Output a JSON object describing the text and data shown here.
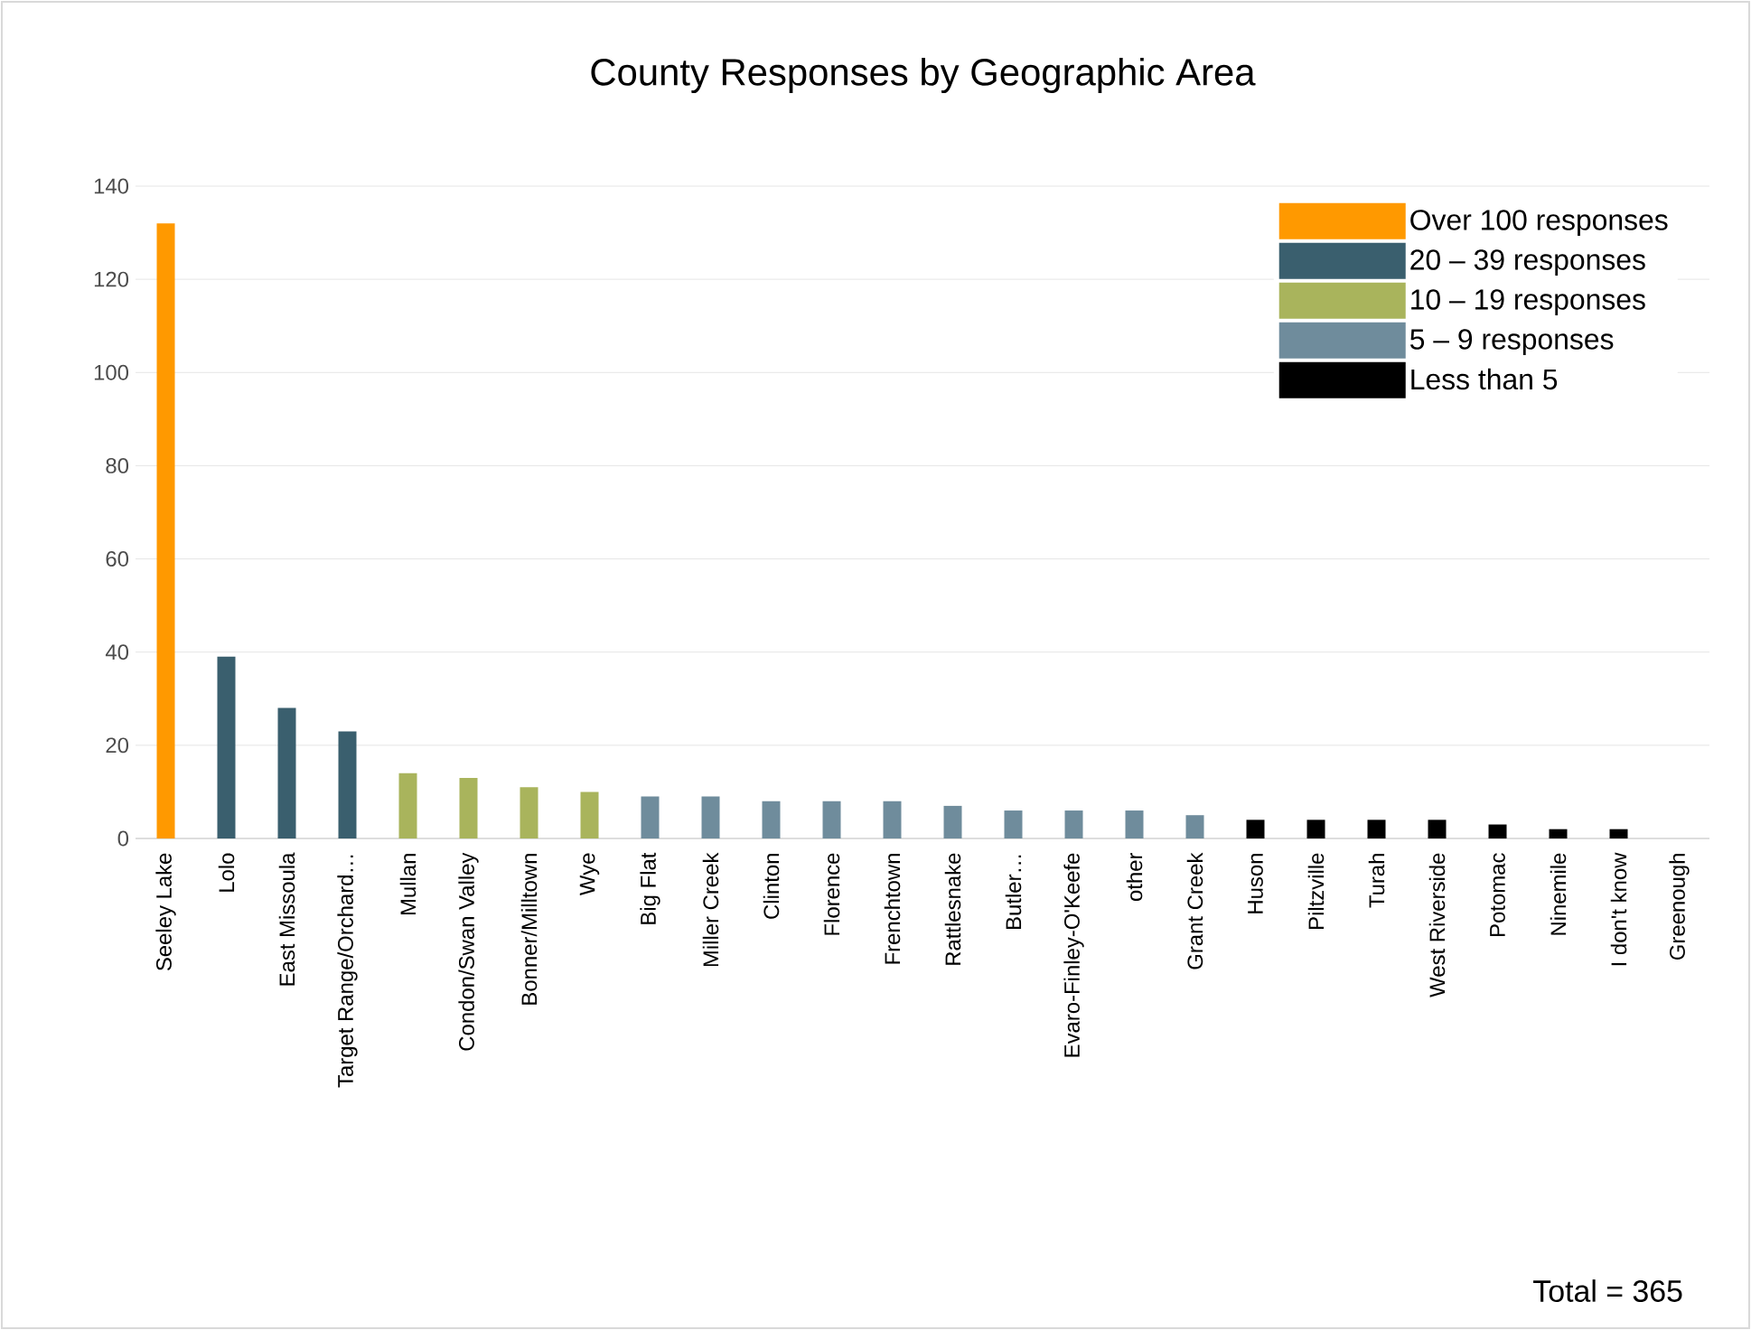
{
  "chart_data": {
    "type": "bar",
    "title": "County Responses by Geographic Area",
    "categories": [
      "Seeley Lake",
      "Lolo",
      "East Missoula",
      "Target Range/Orchard…",
      "Mullan",
      "Condon/Swan Valley",
      "Bonner/Milltown",
      "Wye",
      "Big Flat",
      "Miller Creek",
      "Clinton",
      "Florence",
      "Frenchtown",
      "Rattlesnake",
      "Butler…",
      "Evaro-Finley-O'Keefe",
      "other",
      "Grant Creek",
      "Huson",
      "Piltzville",
      "Turah",
      "West Riverside",
      "Potomac",
      "Ninemile",
      "I don't know",
      "Greenough"
    ],
    "series": [
      {
        "name": "Over 100 responses",
        "color": "#ff9900",
        "values": [
          132,
          null,
          null,
          null,
          null,
          null,
          null,
          null,
          null,
          null,
          null,
          null,
          null,
          null,
          null,
          null,
          null,
          null,
          null,
          null,
          null,
          null,
          null,
          null,
          null,
          null
        ]
      },
      {
        "name": "20 – 39 responses",
        "color": "#3a5f6e",
        "values": [
          null,
          39,
          28,
          23,
          null,
          null,
          null,
          null,
          null,
          null,
          null,
          null,
          null,
          null,
          null,
          null,
          null,
          null,
          null,
          null,
          null,
          null,
          null,
          null,
          null,
          null
        ]
      },
      {
        "name": "10 – 19 responses",
        "color": "#a9b45c",
        "values": [
          null,
          null,
          null,
          null,
          14,
          13,
          11,
          10,
          null,
          null,
          null,
          null,
          null,
          null,
          null,
          null,
          null,
          null,
          null,
          null,
          null,
          null,
          null,
          null,
          null,
          null
        ]
      },
      {
        "name": "5 – 9 responses",
        "color": "#6f8c9c",
        "values": [
          null,
          null,
          null,
          null,
          null,
          null,
          null,
          null,
          9,
          9,
          8,
          8,
          8,
          7,
          6,
          6,
          6,
          5,
          null,
          null,
          null,
          null,
          null,
          null,
          null,
          null
        ]
      },
      {
        "name": "Less than 5",
        "color": "#000000",
        "values": [
          null,
          null,
          null,
          null,
          null,
          null,
          null,
          null,
          null,
          null,
          null,
          null,
          null,
          null,
          null,
          null,
          null,
          null,
          4,
          4,
          4,
          4,
          3,
          2,
          2,
          0
        ]
      }
    ],
    "ylim": [
      0,
      140
    ],
    "yticks": [
      0,
      20,
      40,
      60,
      80,
      100,
      120,
      140
    ],
    "grid": "y",
    "legend": "top right",
    "annotations": [
      "Total = 365"
    ]
  }
}
